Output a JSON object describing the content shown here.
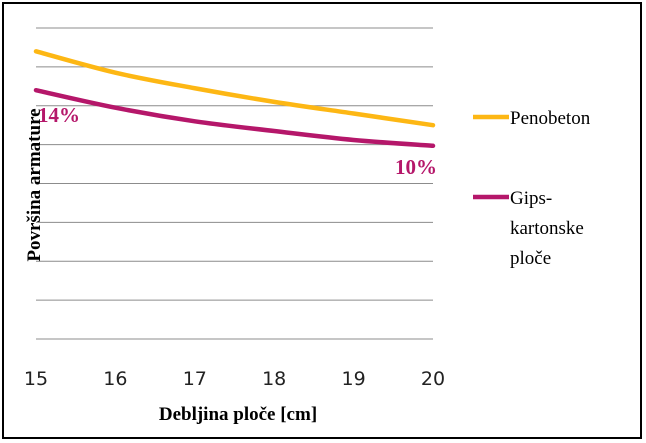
{
  "chart_data": {
    "type": "line",
    "x": [
      15,
      16,
      17,
      18,
      19,
      20
    ],
    "xlabel": "Debljina ploče [cm]",
    "ylabel": "Površina armature",
    "xlim": [
      15,
      20
    ],
    "ylim": [
      0,
      8
    ],
    "grid": "horizontal",
    "legend_position": "right",
    "series": [
      {
        "name": "Penobeton",
        "color": "#FDB714",
        "values": [
          7.4,
          6.85,
          6.45,
          6.1,
          5.8,
          5.5
        ]
      },
      {
        "name": "Gips-kartonske ploče",
        "legend_lines": [
          "Gips-",
          "kartonske",
          "ploče"
        ],
        "color": "#B5176A",
        "values": [
          6.4,
          5.95,
          5.6,
          5.35,
          5.12,
          4.97
        ]
      }
    ],
    "annotations": [
      {
        "text": "14%",
        "series": 1,
        "x": 15,
        "color": "#B5176A"
      },
      {
        "text": "10%",
        "series": 1,
        "x": 20,
        "color": "#B5176A"
      }
    ]
  }
}
